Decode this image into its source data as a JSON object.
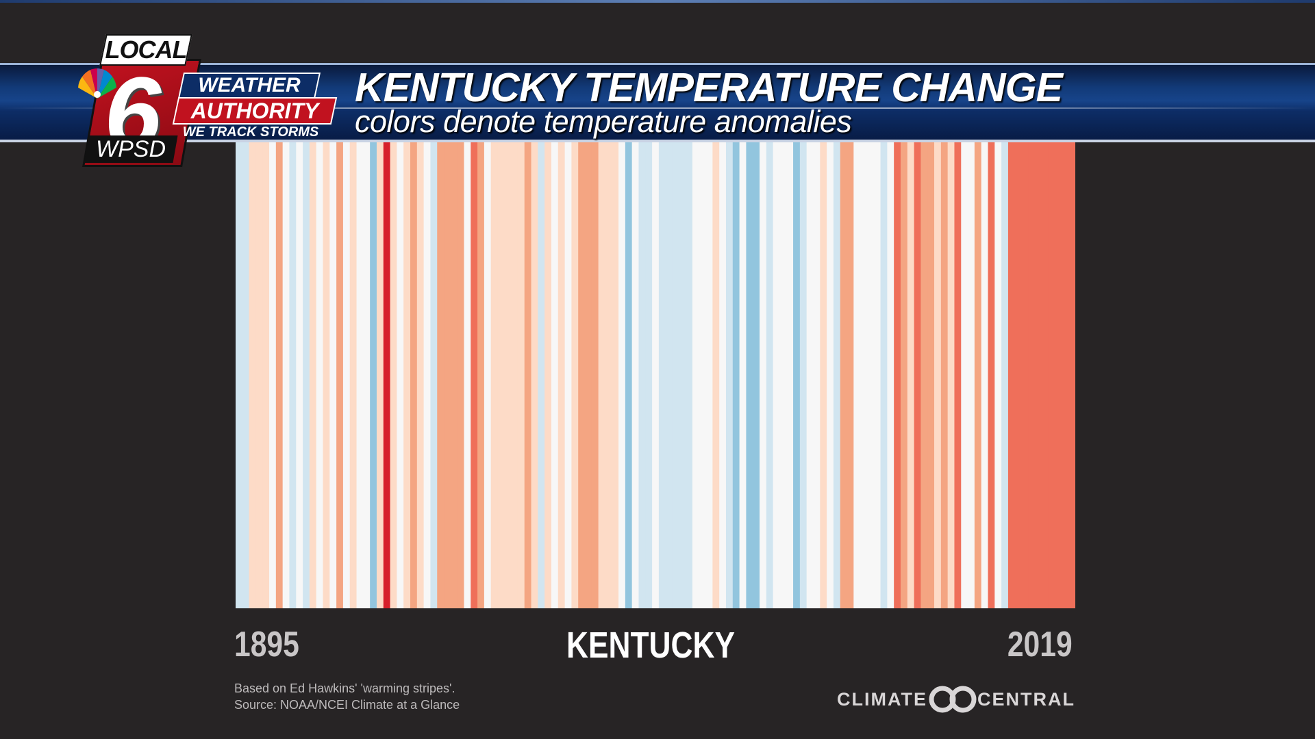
{
  "banner": {
    "title": "KENTUCKY TEMPERATURE CHANGE",
    "subtitle": "colors denote temperature anomalies"
  },
  "logo": {
    "local": "LOCAL",
    "number": "6",
    "station": "WPSD",
    "weather": "WEATHER",
    "authority": "AUTHORITY",
    "tagline": "WE TRACK STORMS"
  },
  "footer": {
    "start_year": "1895",
    "end_year": "2019",
    "state": "KENTUCKY",
    "credit_line1": "Based on Ed Hawkins' 'warming stripes'.",
    "credit_line2": "Source: NOAA/NCEI Climate at a Glance",
    "climate_central_left": "CLIMATE",
    "climate_central_right": "CENTRAL"
  },
  "colors": {
    "background": "#272425",
    "banner": "#123a78",
    "logo_red": "#c1121f",
    "stripe_scale": [
      "#92c5de",
      "#d1e5f0",
      "#f7f7f7",
      "#fddbc7",
      "#f4a582",
      "#ef6f5a",
      "#d6202b"
    ]
  },
  "chart_data": {
    "type": "heatmap",
    "description_style": "warming stripes",
    "x_start": 1895,
    "x_end": 2019,
    "anomaly_scale_levels": [
      -2,
      -1,
      0,
      1,
      2,
      3,
      4
    ],
    "anomaly_levels_by_year_run": [
      {
        "from": 1895,
        "to": 1896,
        "level": -1
      },
      {
        "from": 1897,
        "to": 1899,
        "level": 1
      },
      {
        "from": 1900,
        "to": 1900,
        "level": 0
      },
      {
        "from": 1901,
        "to": 1901,
        "level": 2
      },
      {
        "from": 1902,
        "to": 1902,
        "level": 0
      },
      {
        "from": 1903,
        "to": 1903,
        "level": -1
      },
      {
        "from": 1904,
        "to": 1904,
        "level": 0
      },
      {
        "from": 1905,
        "to": 1905,
        "level": -1
      },
      {
        "from": 1906,
        "to": 1906,
        "level": 1
      },
      {
        "from": 1907,
        "to": 1907,
        "level": 0
      },
      {
        "from": 1908,
        "to": 1908,
        "level": 1
      },
      {
        "from": 1909,
        "to": 1909,
        "level": 0
      },
      {
        "from": 1910,
        "to": 1910,
        "level": 2
      },
      {
        "from": 1911,
        "to": 1911,
        "level": 0
      },
      {
        "from": 1912,
        "to": 1912,
        "level": 1
      },
      {
        "from": 1913,
        "to": 1914,
        "level": 0
      },
      {
        "from": 1915,
        "to": 1915,
        "level": -2
      },
      {
        "from": 1916,
        "to": 1916,
        "level": 1
      },
      {
        "from": 1917,
        "to": 1917,
        "level": 4
      },
      {
        "from": 1918,
        "to": 1918,
        "level": 1
      },
      {
        "from": 1919,
        "to": 1919,
        "level": 0
      },
      {
        "from": 1920,
        "to": 1920,
        "level": 1
      },
      {
        "from": 1921,
        "to": 1921,
        "level": 2
      },
      {
        "from": 1922,
        "to": 1922,
        "level": 1
      },
      {
        "from": 1923,
        "to": 1923,
        "level": 0
      },
      {
        "from": 1924,
        "to": 1924,
        "level": -1
      },
      {
        "from": 1925,
        "to": 1928,
        "level": 2
      },
      {
        "from": 1929,
        "to": 1929,
        "level": 0
      },
      {
        "from": 1930,
        "to": 1930,
        "level": 3
      },
      {
        "from": 1931,
        "to": 1931,
        "level": 2
      },
      {
        "from": 1932,
        "to": 1932,
        "level": 0
      },
      {
        "from": 1933,
        "to": 1937,
        "level": 1
      },
      {
        "from": 1938,
        "to": 1938,
        "level": 2
      },
      {
        "from": 1939,
        "to": 1939,
        "level": 1
      },
      {
        "from": 1940,
        "to": 1940,
        "level": -1
      },
      {
        "from": 1941,
        "to": 1941,
        "level": 1
      },
      {
        "from": 1942,
        "to": 1942,
        "level": 0
      },
      {
        "from": 1943,
        "to": 1943,
        "level": 1
      },
      {
        "from": 1944,
        "to": 1944,
        "level": 0
      },
      {
        "from": 1945,
        "to": 1945,
        "level": 1
      },
      {
        "from": 1946,
        "to": 1948,
        "level": 2
      },
      {
        "from": 1949,
        "to": 1951,
        "level": 1
      },
      {
        "from": 1952,
        "to": 1952,
        "level": 0
      },
      {
        "from": 1953,
        "to": 1953,
        "level": -2
      },
      {
        "from": 1954,
        "to": 1954,
        "level": 0
      },
      {
        "from": 1955,
        "to": 1956,
        "level": -1
      },
      {
        "from": 1957,
        "to": 1957,
        "level": 0
      },
      {
        "from": 1958,
        "to": 1962,
        "level": -1
      },
      {
        "from": 1963,
        "to": 1965,
        "level": 0
      },
      {
        "from": 1966,
        "to": 1966,
        "level": 1
      },
      {
        "from": 1967,
        "to": 1967,
        "level": 0
      },
      {
        "from": 1968,
        "to": 1968,
        "level": -1
      },
      {
        "from": 1969,
        "to": 1969,
        "level": -2
      },
      {
        "from": 1970,
        "to": 1970,
        "level": 0
      },
      {
        "from": 1971,
        "to": 1972,
        "level": -2
      },
      {
        "from": 1973,
        "to": 1973,
        "level": 0
      },
      {
        "from": 1974,
        "to": 1974,
        "level": -1
      },
      {
        "from": 1975,
        "to": 1977,
        "level": 0
      },
      {
        "from": 1978,
        "to": 1978,
        "level": -2
      },
      {
        "from": 1979,
        "to": 1979,
        "level": -1
      },
      {
        "from": 1980,
        "to": 1981,
        "level": 0
      },
      {
        "from": 1982,
        "to": 1982,
        "level": 1
      },
      {
        "from": 1983,
        "to": 1983,
        "level": 0
      },
      {
        "from": 1984,
        "to": 1984,
        "level": -1
      },
      {
        "from": 1985,
        "to": 1986,
        "level": 2
      },
      {
        "from": 1987,
        "to": 1990,
        "level": 0
      },
      {
        "from": 1991,
        "to": 1991,
        "level": -1
      },
      {
        "from": 1992,
        "to": 1992,
        "level": 0
      },
      {
        "from": 1993,
        "to": 1993,
        "level": 3
      },
      {
        "from": 1994,
        "to": 1994,
        "level": 2
      },
      {
        "from": 1995,
        "to": 1995,
        "level": 1
      },
      {
        "from": 1996,
        "to": 1996,
        "level": 3
      },
      {
        "from": 1997,
        "to": 1998,
        "level": 2
      },
      {
        "from": 1999,
        "to": 1999,
        "level": 1
      },
      {
        "from": 2000,
        "to": 2000,
        "level": 2
      },
      {
        "from": 2001,
        "to": 2001,
        "level": 1
      },
      {
        "from": 2002,
        "to": 2002,
        "level": 3
      },
      {
        "from": 2003,
        "to": 2004,
        "level": 0
      },
      {
        "from": 2005,
        "to": 2005,
        "level": 2
      },
      {
        "from": 2006,
        "to": 2006,
        "level": 0
      },
      {
        "from": 2007,
        "to": 2007,
        "level": 3
      },
      {
        "from": 2008,
        "to": 2008,
        "level": 0
      },
      {
        "from": 2009,
        "to": 2009,
        "level": -1
      },
      {
        "from": 2010,
        "to": 2011,
        "level": 3
      },
      {
        "from": 2012,
        "to": 2014,
        "level": 3
      },
      {
        "from": 2015,
        "to": 2016,
        "level": 3
      },
      {
        "from": 2017,
        "to": 2019,
        "level": 3
      }
    ],
    "title": "KENTUCKY TEMPERATURE CHANGE",
    "xlabel": "",
    "ylabel": "",
    "grid": false,
    "legend": "none"
  }
}
